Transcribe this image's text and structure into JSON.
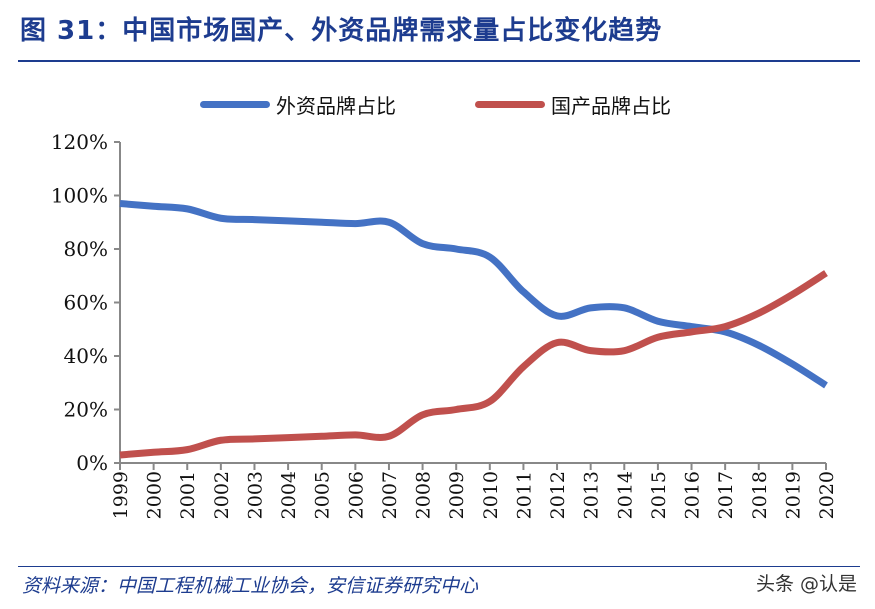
{
  "title": "图 31：中国市场国产、外资品牌需求量占比变化趋势",
  "source": "资料来源：中国工程机械工业协会，安信证券研究中心",
  "watermark": "头条 @认是",
  "chart_data": {
    "type": "line",
    "smooth": true,
    "x": [
      "1999",
      "2000",
      "2001",
      "2002",
      "2003",
      "2004",
      "2005",
      "2006",
      "2007",
      "2008",
      "2009",
      "2010",
      "2011",
      "2012",
      "2013",
      "2014",
      "2015",
      "2016",
      "2017",
      "2018",
      "2019",
      "2020"
    ],
    "series": [
      {
        "name": "外资品牌占比",
        "color": "#4472c4",
        "values": [
          97,
          96,
          95,
          91.5,
          91,
          90.5,
          90,
          89.5,
          90,
          82,
          80,
          77,
          64,
          55,
          58,
          58,
          53,
          51,
          49,
          44,
          37,
          29
        ]
      },
      {
        "name": "国产品牌占比",
        "color": "#c0504d",
        "values": [
          3,
          4,
          5,
          8.5,
          9,
          9.5,
          10,
          10.5,
          10,
          18,
          20,
          23,
          36,
          45,
          42,
          42,
          47,
          49,
          51,
          56,
          63,
          71
        ]
      }
    ],
    "ylim": [
      0,
      120
    ],
    "yticks": [
      "0%",
      "20%",
      "40%",
      "60%",
      "80%",
      "100%",
      "120%"
    ],
    "grid": false,
    "legend": "top"
  }
}
